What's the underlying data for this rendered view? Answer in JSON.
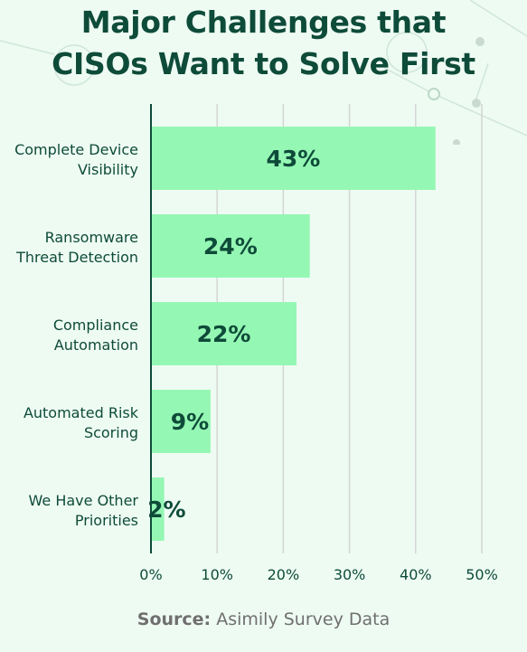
{
  "title_line1": "Major Challenges that",
  "title_line2": "CISOs Want to Solve First",
  "source_label": "Source:",
  "source_text": "Asimily Survey Data",
  "colors": {
    "background": "#eefbf3",
    "bar": "#95f7b4",
    "text_dark": "#0e4b39",
    "axis": "#0e4b39",
    "grid": "#d4d4d4"
  },
  "chart_data": {
    "type": "bar",
    "orientation": "horizontal",
    "title": "Major Challenges that CISOs Want to Solve First",
    "categories": [
      [
        "Complete Device",
        "Visibility"
      ],
      [
        "Ransomware",
        "Threat Detection"
      ],
      [
        "Compliance",
        "Automation"
      ],
      [
        "Automated Risk",
        "Scoring"
      ],
      [
        "We Have Other",
        "Priorities"
      ]
    ],
    "values": [
      43,
      24,
      22,
      9,
      2
    ],
    "value_labels": [
      "43%",
      "24%",
      "22%",
      "9%",
      "2%"
    ],
    "xlim": [
      0,
      50
    ],
    "x_ticks": [
      0,
      10,
      20,
      30,
      40,
      50
    ],
    "x_tick_labels": [
      "0%",
      "10%",
      "20%",
      "30%",
      "40%",
      "50%"
    ],
    "grid": true
  }
}
